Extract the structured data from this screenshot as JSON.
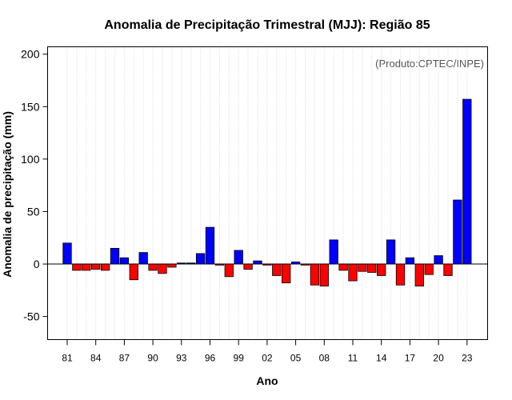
{
  "chart_data": {
    "type": "bar",
    "title": "Anomalia de Precipitação Trimestral (MJJ): Região 85",
    "xlabel": "Ano",
    "ylabel": "Anomalia de precipitação (mm)",
    "credit": "(Produto:CPTEC/INPE)",
    "ylim": [
      -72,
      207
    ],
    "yticks": [
      -50,
      0,
      50,
      100,
      150,
      200
    ],
    "x_tick_labels": [
      {
        "year": 1981,
        "label": "81"
      },
      {
        "year": 1984,
        "label": "84"
      },
      {
        "year": 1987,
        "label": "87"
      },
      {
        "year": 1990,
        "label": "90"
      },
      {
        "year": 1993,
        "label": "93"
      },
      {
        "year": 1996,
        "label": "96"
      },
      {
        "year": 1999,
        "label": "99"
      },
      {
        "year": 2002,
        "label": "02"
      },
      {
        "year": 2005,
        "label": "05"
      },
      {
        "year": 2008,
        "label": "08"
      },
      {
        "year": 2011,
        "label": "11"
      },
      {
        "year": 2014,
        "label": "14"
      },
      {
        "year": 2017,
        "label": "17"
      },
      {
        "year": 2020,
        "label": "20"
      },
      {
        "year": 2023,
        "label": "23"
      }
    ],
    "categories": [
      1981,
      1982,
      1983,
      1984,
      1985,
      1986,
      1987,
      1988,
      1989,
      1990,
      1991,
      1992,
      1993,
      1994,
      1995,
      1996,
      1997,
      1998,
      1999,
      2000,
      2001,
      2002,
      2003,
      2004,
      2005,
      2006,
      2007,
      2008,
      2009,
      2010,
      2011,
      2012,
      2013,
      2014,
      2015,
      2016,
      2017,
      2018,
      2019,
      2020,
      2021,
      2022,
      2023
    ],
    "values": [
      20,
      -6,
      -6,
      -5,
      -6,
      15,
      6,
      -15,
      11,
      -6,
      -9,
      -3,
      1,
      1,
      10,
      35,
      -1,
      -12,
      13,
      -5,
      3,
      -1,
      -11,
      -18,
      2,
      -1,
      -20,
      -21,
      23,
      -6,
      -16,
      -7,
      -8,
      -11,
      23,
      -20,
      6,
      -21,
      -10,
      8,
      -11,
      61,
      157
    ],
    "grid": "vertical-dotted",
    "colors": {
      "positive": "#0000ff",
      "negative": "#ff0000",
      "grid": "#d3d3d3"
    }
  }
}
